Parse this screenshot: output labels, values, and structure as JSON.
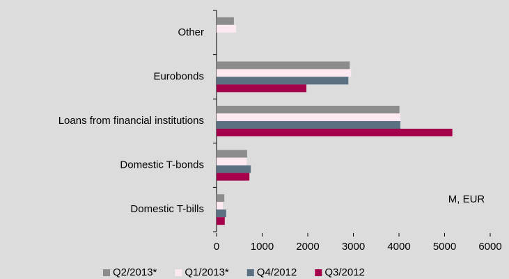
{
  "chart_data": {
    "type": "bar",
    "orientation": "horizontal",
    "categories": [
      "Other",
      "Eurobonds",
      "Loans from financial institutions",
      "Domestic T-bonds",
      "Domestic T-bills"
    ],
    "series": [
      {
        "name": "Q2/2013*",
        "color": "#8c8c8c",
        "values": [
          380,
          2920,
          4010,
          670,
          170
        ]
      },
      {
        "name": "Q1/2013*",
        "color": "#fde9f1",
        "values": [
          430,
          2950,
          4030,
          660,
          140
        ]
      },
      {
        "name": "Q4/2012",
        "color": "#5b7083",
        "values": [
          null,
          2890,
          4030,
          750,
          210
        ]
      },
      {
        "name": "Q3/2012",
        "color": "#a5004a",
        "values": [
          null,
          1970,
          5170,
          720,
          180
        ]
      }
    ],
    "xlim": [
      0,
      6000
    ],
    "xticks": [
      0,
      1000,
      2000,
      3000,
      4000,
      5000,
      6000
    ],
    "annotation": "M, EUR"
  }
}
